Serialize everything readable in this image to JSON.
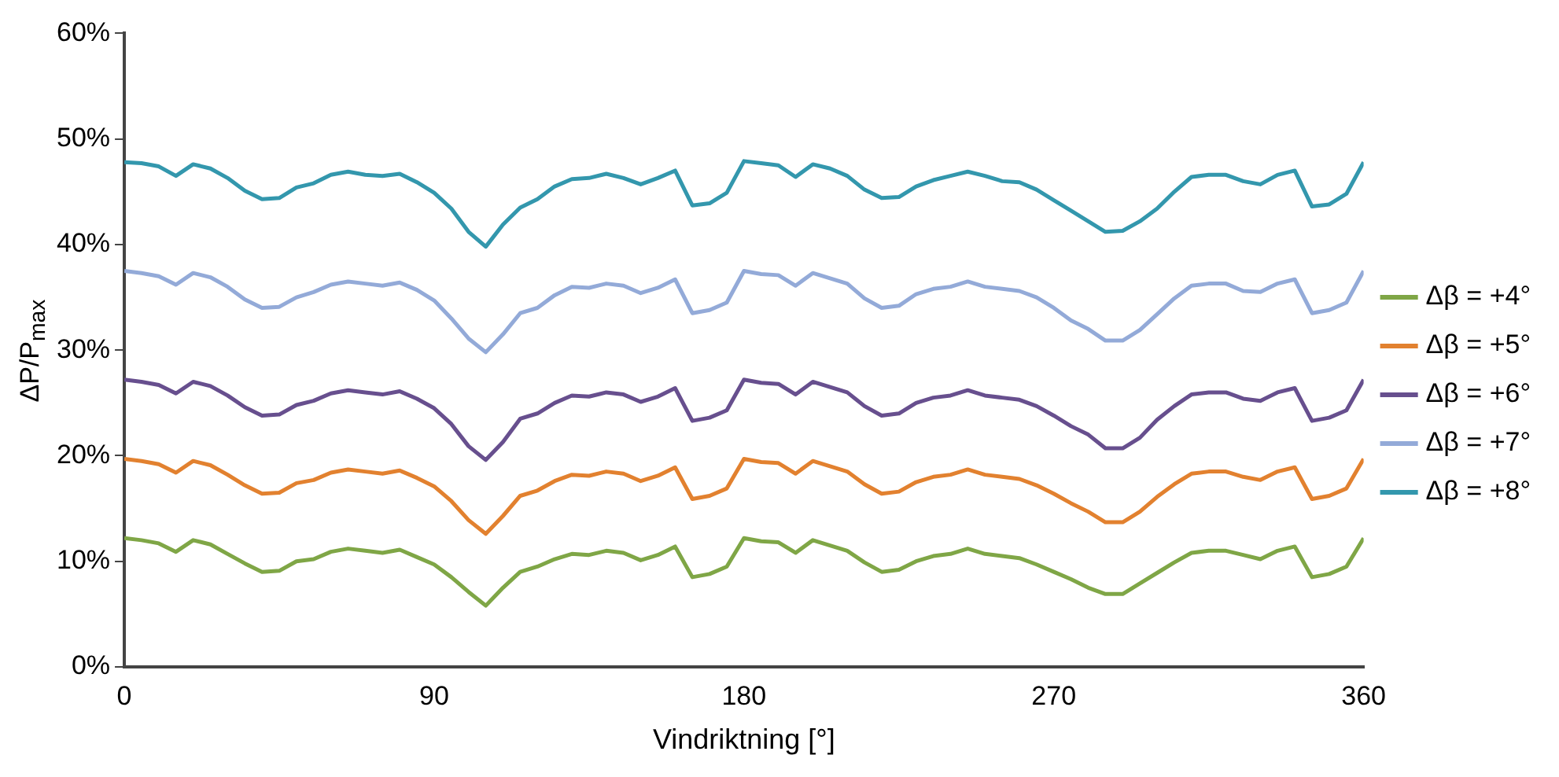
{
  "chart_data": {
    "type": "line",
    "xlabel": "Vindriktning [°]",
    "ylabel": "ΔP/P$_{max}$",
    "xlim": [
      0,
      360
    ],
    "xticks": [
      0,
      90,
      180,
      270,
      360
    ],
    "ylim": [
      0,
      60
    ],
    "yticks": [
      {
        "value": 0,
        "label": "0%"
      },
      {
        "value": 10,
        "label": "10%"
      },
      {
        "value": 20,
        "label": "20%"
      },
      {
        "value": 30,
        "label": "30%"
      },
      {
        "value": 40,
        "label": "40%"
      },
      {
        "value": 50,
        "label": "50%"
      },
      {
        "value": 60,
        "label": "60%"
      }
    ],
    "grid": false,
    "legend": "right",
    "marker": "none",
    "line_style": "solid",
    "x": [
      0,
      5,
      10,
      15,
      20,
      25,
      30,
      35,
      40,
      45,
      50,
      55,
      60,
      65,
      70,
      75,
      80,
      85,
      90,
      95,
      100,
      105,
      110,
      115,
      120,
      125,
      130,
      135,
      140,
      145,
      150,
      155,
      160,
      165,
      170,
      175,
      180,
      185,
      190,
      195,
      200,
      205,
      210,
      215,
      220,
      225,
      230,
      235,
      240,
      245,
      250,
      255,
      260,
      265,
      270,
      275,
      280,
      285,
      290,
      295,
      300,
      305,
      310,
      315,
      320,
      325,
      330,
      335,
      340,
      345,
      350,
      355,
      360
    ],
    "series": [
      {
        "name": "Δβ = +4°",
        "color": "#7fa646",
        "values": [
          12.2,
          12.0,
          11.7,
          10.9,
          12.0,
          11.6,
          10.7,
          9.8,
          9.0,
          9.1,
          10.0,
          10.2,
          10.9,
          11.2,
          11.0,
          10.8,
          11.1,
          10.4,
          9.7,
          8.5,
          7.1,
          5.8,
          7.5,
          9.0,
          9.5,
          10.2,
          10.7,
          10.6,
          11.0,
          10.8,
          10.1,
          10.6,
          11.4,
          8.5,
          8.8,
          9.5,
          12.2,
          11.9,
          11.8,
          10.8,
          12.0,
          11.5,
          11.0,
          9.9,
          9.0,
          9.2,
          10.0,
          10.5,
          10.7,
          11.2,
          10.7,
          10.5,
          10.3,
          9.7,
          9.0,
          8.3,
          7.5,
          6.9,
          6.9,
          7.9,
          8.9,
          9.9,
          10.8,
          11.0,
          11.0,
          10.6,
          10.2,
          11.0,
          11.4,
          8.5,
          8.8,
          9.5,
          12.2
        ]
      },
      {
        "name": "Δβ = +5°",
        "color": "#e2812f",
        "values": [
          19.7,
          19.5,
          19.2,
          18.4,
          19.5,
          19.1,
          18.2,
          17.2,
          16.4,
          16.5,
          17.4,
          17.7,
          18.4,
          18.7,
          18.5,
          18.3,
          18.6,
          17.9,
          17.1,
          15.7,
          13.9,
          12.6,
          14.3,
          16.2,
          16.7,
          17.6,
          18.2,
          18.1,
          18.5,
          18.3,
          17.6,
          18.1,
          18.9,
          15.9,
          16.2,
          16.9,
          19.7,
          19.4,
          19.3,
          18.3,
          19.5,
          19.0,
          18.5,
          17.3,
          16.4,
          16.6,
          17.5,
          18.0,
          18.2,
          18.7,
          18.2,
          18.0,
          17.8,
          17.2,
          16.4,
          15.5,
          14.7,
          13.7,
          13.7,
          14.7,
          16.1,
          17.3,
          18.3,
          18.5,
          18.5,
          18.0,
          17.7,
          18.5,
          18.9,
          15.9,
          16.2,
          16.9,
          19.7
        ]
      },
      {
        "name": "Δβ = +6°",
        "color": "#674f8e",
        "values": [
          27.2,
          27.0,
          26.7,
          25.9,
          27.0,
          26.6,
          25.7,
          24.6,
          23.8,
          23.9,
          24.8,
          25.2,
          25.9,
          26.2,
          26.0,
          25.8,
          26.1,
          25.4,
          24.5,
          23.0,
          20.9,
          19.6,
          21.3,
          23.5,
          24.0,
          25.0,
          25.7,
          25.6,
          26.0,
          25.8,
          25.1,
          25.6,
          26.4,
          23.3,
          23.6,
          24.3,
          27.2,
          26.9,
          26.8,
          25.8,
          27.0,
          26.5,
          26.0,
          24.7,
          23.8,
          24.0,
          25.0,
          25.5,
          25.7,
          26.2,
          25.7,
          25.5,
          25.3,
          24.7,
          23.8,
          22.8,
          22.0,
          20.7,
          20.7,
          21.7,
          23.4,
          24.7,
          25.8,
          26.0,
          26.0,
          25.4,
          25.2,
          26.0,
          26.4,
          23.3,
          23.6,
          24.3,
          27.2
        ]
      },
      {
        "name": "Δβ = +7°",
        "color": "#93aad8",
        "values": [
          37.5,
          37.3,
          37.0,
          36.2,
          37.3,
          36.9,
          36.0,
          34.8,
          34.0,
          34.1,
          35.0,
          35.5,
          36.2,
          36.5,
          36.3,
          36.1,
          36.4,
          35.7,
          34.7,
          33.0,
          31.1,
          29.8,
          31.5,
          33.5,
          34.0,
          35.2,
          36.0,
          35.9,
          36.3,
          36.1,
          35.4,
          35.9,
          36.7,
          33.5,
          33.8,
          34.5,
          37.5,
          37.2,
          37.1,
          36.1,
          37.3,
          36.8,
          36.3,
          34.9,
          34.0,
          34.2,
          35.3,
          35.8,
          36.0,
          36.5,
          36.0,
          35.8,
          35.6,
          35.0,
          34.0,
          32.8,
          32.0,
          30.9,
          30.9,
          31.9,
          33.4,
          34.9,
          36.1,
          36.3,
          36.3,
          35.6,
          35.5,
          36.3,
          36.7,
          33.5,
          33.8,
          34.5,
          37.5
        ]
      },
      {
        "name": "Δβ = +8°",
        "color": "#3397ad",
        "values": [
          47.8,
          47.7,
          47.4,
          46.5,
          47.6,
          47.2,
          46.3,
          45.1,
          44.3,
          44.4,
          45.4,
          45.8,
          46.6,
          46.9,
          46.6,
          46.5,
          46.7,
          45.9,
          44.9,
          43.4,
          41.2,
          39.8,
          41.9,
          43.5,
          44.3,
          45.5,
          46.2,
          46.3,
          46.7,
          46.3,
          45.7,
          46.3,
          47.0,
          43.7,
          43.9,
          44.9,
          47.9,
          47.7,
          47.5,
          46.4,
          47.6,
          47.2,
          46.5,
          45.2,
          44.4,
          44.5,
          45.5,
          46.1,
          46.5,
          46.9,
          46.5,
          46.0,
          45.9,
          45.2,
          44.2,
          43.2,
          42.2,
          41.2,
          41.3,
          42.2,
          43.4,
          45.0,
          46.4,
          46.6,
          46.6,
          46.0,
          45.7,
          46.6,
          47.0,
          43.6,
          43.8,
          44.8,
          47.8
        ]
      }
    ]
  }
}
